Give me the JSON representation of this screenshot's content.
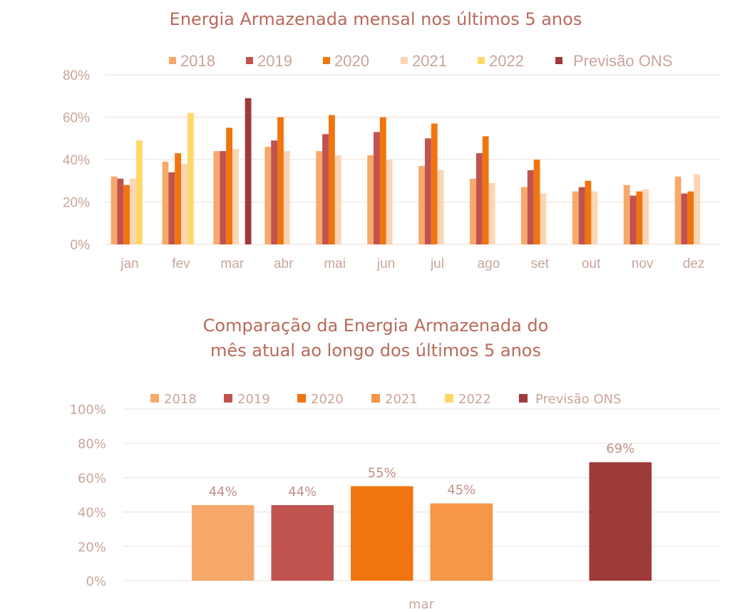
{
  "chart_data": [
    {
      "type": "bar",
      "title": "Energia Armazenada mensal nos últimos 5 anos",
      "xlabel": "",
      "ylabel": "",
      "ylim": [
        0,
        80
      ],
      "y_ticks": [
        "0%",
        "20%",
        "40%",
        "60%",
        "80%"
      ],
      "y_tick_values": [
        0,
        20,
        40,
        60,
        80
      ],
      "grid": true,
      "legend_position": "top",
      "categories": [
        "jan",
        "fev",
        "mar",
        "abr",
        "mai",
        "jun",
        "jul",
        "ago",
        "set",
        "out",
        "nov",
        "dez"
      ],
      "series": [
        {
          "name": "2018",
          "color": "#f6a96a",
          "values": [
            32,
            39,
            44,
            46,
            44,
            42,
            37,
            31,
            27,
            25,
            28,
            32
          ]
        },
        {
          "name": "2019",
          "color": "#c0524f",
          "values": [
            31,
            34,
            44,
            49,
            52,
            53,
            50,
            43,
            35,
            27,
            23,
            24
          ]
        },
        {
          "name": "2020",
          "color": "#f0750f",
          "values": [
            28,
            43,
            55,
            60,
            61,
            60,
            57,
            51,
            40,
            30,
            25,
            25
          ]
        },
        {
          "name": "2021",
          "color": "#fcd5b4",
          "values": [
            31,
            38,
            45,
            44,
            42,
            40,
            35,
            29,
            24,
            25,
            26,
            33
          ]
        },
        {
          "name": "2022",
          "color": "#ffd966",
          "values": [
            49,
            62,
            null,
            null,
            null,
            null,
            null,
            null,
            null,
            null,
            null,
            null
          ]
        },
        {
          "name": "Previsão ONS",
          "color": "#9e3a3a",
          "values": [
            null,
            null,
            69,
            null,
            null,
            null,
            null,
            null,
            null,
            null,
            null,
            null
          ]
        }
      ]
    },
    {
      "type": "bar",
      "title_lines": [
        "Comparação da Energia Armazenada do",
        "mês atual ao longo dos últimos 5 anos"
      ],
      "xlabel": "",
      "ylabel": "",
      "ylim": [
        0,
        100
      ],
      "y_ticks": [
        "0%",
        "20%",
        "40%",
        "60%",
        "80%",
        "100%"
      ],
      "y_tick_values": [
        0,
        20,
        40,
        60,
        80,
        100
      ],
      "grid": true,
      "legend_position": "top",
      "categories": [
        "mar"
      ],
      "series": [
        {
          "name": "2018",
          "color": "#f6a96a",
          "values": [
            44
          ],
          "label": "44%"
        },
        {
          "name": "2019",
          "color": "#c0524f",
          "values": [
            44
          ],
          "label": "44%"
        },
        {
          "name": "2020",
          "color": "#f0750f",
          "values": [
            55
          ],
          "label": "55%"
        },
        {
          "name": "2021",
          "color": "#f79646",
          "values": [
            45
          ],
          "label": "45%"
        },
        {
          "name": "2022",
          "color": "#ffd966",
          "values": [
            null
          ],
          "label": ""
        },
        {
          "name": "Previsão ONS",
          "color": "#9e3a3a",
          "values": [
            69
          ],
          "label": "69%"
        }
      ]
    }
  ]
}
